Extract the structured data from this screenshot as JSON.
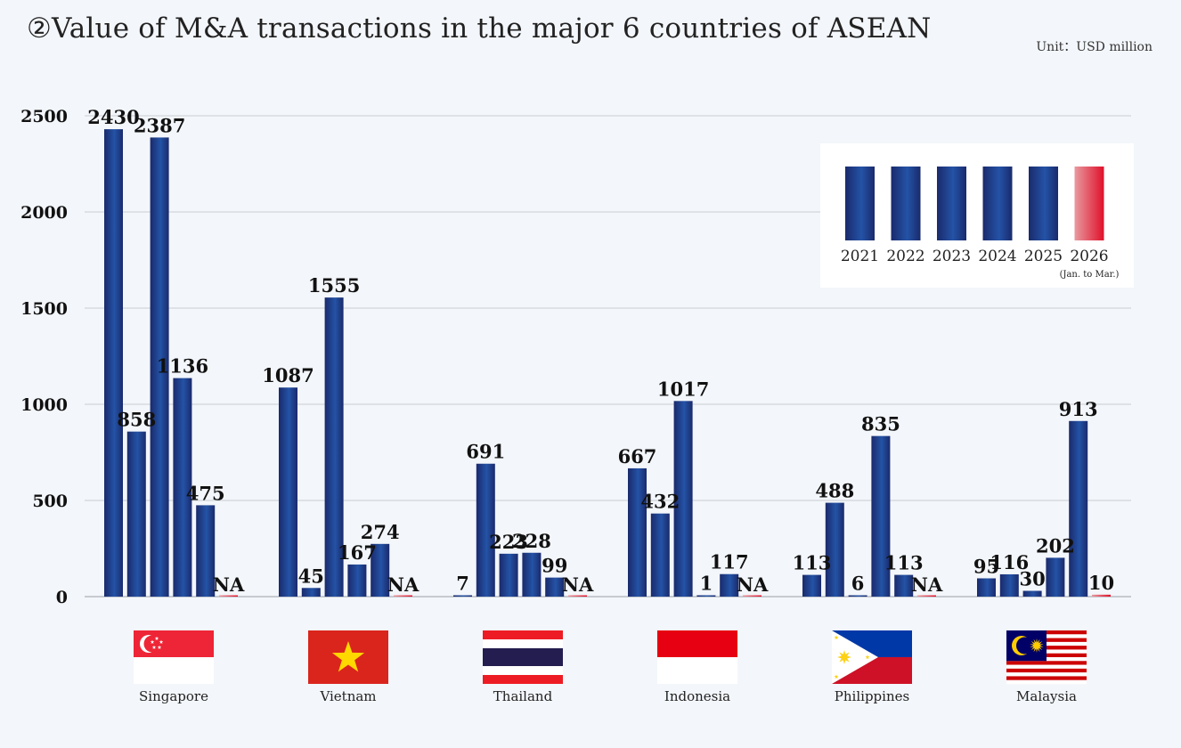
{
  "header": {
    "title": "②Value of M&A transactions in the major 6 countries of ASEAN",
    "unit": "Unit：USD million"
  },
  "colors": {
    "bar_dark": "#1a2a6c",
    "bar_light": "#2453a6",
    "bar_2026_light": "#e89aa0",
    "bar_2026_dark": "#e0102a",
    "grid": "#c9cdd3"
  },
  "chart_data": {
    "type": "bar",
    "categories": [
      "Singapore",
      "Vietnam",
      "Thailand",
      "Indonesia",
      "Philippines",
      "Malaysia"
    ],
    "series": [
      {
        "name": "2021",
        "values": [
          2430,
          1087,
          7,
          667,
          113,
          95
        ],
        "labels": [
          "2430",
          "1087",
          "7",
          "667",
          "113",
          "95"
        ]
      },
      {
        "name": "2022",
        "values": [
          858,
          45,
          691,
          432,
          488,
          116
        ],
        "labels": [
          "858",
          "45",
          "691",
          "432",
          "488",
          "116"
        ]
      },
      {
        "name": "2023",
        "values": [
          2387,
          1555,
          223,
          1017,
          6,
          30
        ],
        "labels": [
          "2387",
          "1555",
          "223",
          "1017",
          "6",
          "30"
        ]
      },
      {
        "name": "2024",
        "values": [
          1136,
          167,
          228,
          1,
          835,
          202
        ],
        "labels": [
          "1136",
          "167",
          "228",
          "1",
          "835",
          "202"
        ]
      },
      {
        "name": "2025",
        "values": [
          475,
          274,
          99,
          117,
          113,
          913
        ],
        "labels": [
          "475",
          "274",
          "99",
          "117",
          "113",
          "913"
        ]
      },
      {
        "name": "2026",
        "note": "(Jan. to Mar.)",
        "values": [
          null,
          null,
          null,
          null,
          null,
          10
        ],
        "labels": [
          "NA",
          "NA",
          "NA",
          "NA",
          "NA",
          "10"
        ]
      }
    ],
    "ylim": [
      0,
      2500
    ],
    "yticks": [
      0,
      500,
      1000,
      1500,
      2000,
      2500
    ],
    "grid": true,
    "legend_position": "top-right",
    "flags": [
      "singapore-flag",
      "vietnam-flag",
      "thailand-flag",
      "indonesia-flag",
      "philippines-flag",
      "malaysia-flag"
    ]
  }
}
